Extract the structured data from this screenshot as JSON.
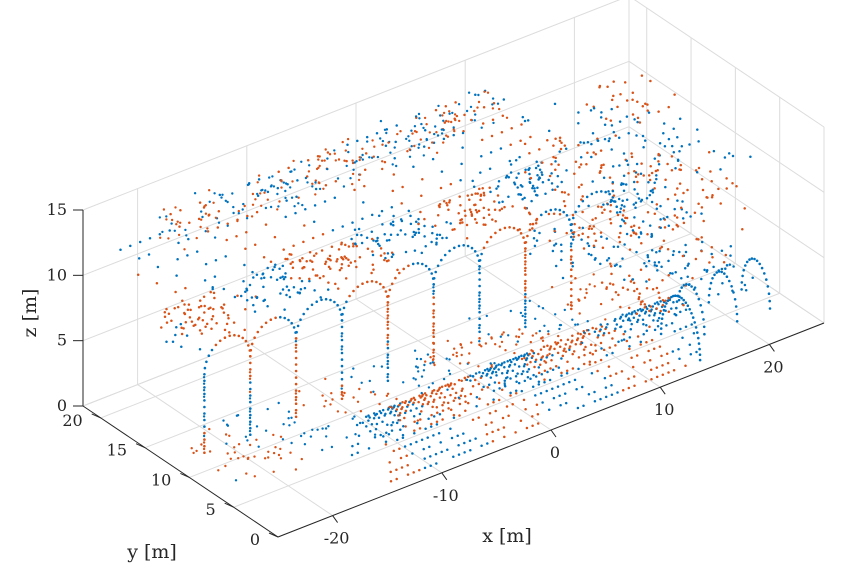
{
  "chart_data": {
    "type": "scatter",
    "projection": "3d",
    "title": "",
    "xlabel": "x [m]",
    "ylabel": "y [m]",
    "zlabel": "z [m]",
    "xlim": [
      -25,
      25
    ],
    "ylim": [
      0,
      22
    ],
    "zlim": [
      0,
      15
    ],
    "xticks": [
      "-20",
      "-10",
      "0",
      "10",
      "20"
    ],
    "yticks": [
      "0",
      "5",
      "10",
      "15",
      "20"
    ],
    "zticks": [
      "0",
      "5",
      "10",
      "15"
    ],
    "grid": true,
    "legend": "none",
    "series": [
      {
        "color": "#0072BD",
        "role": "point cloud (blue)"
      },
      {
        "color": "#D95319",
        "role": "point cloud (orange)"
      }
    ],
    "structures": [
      {
        "kind": "vault",
        "x": [
          -14,
          14
        ],
        "y": [
          1,
          5
        ],
        "z": [
          0,
          4.5
        ]
      },
      {
        "kind": "arcade-left",
        "x": [
          -24,
          12
        ],
        "y": [
          11,
          14
        ],
        "z": [
          0,
          10
        ]
      },
      {
        "kind": "roof-left",
        "x": [
          -24,
          12
        ],
        "y": [
          14,
          20
        ],
        "z": [
          9,
          14
        ]
      },
      {
        "kind": "right-structure",
        "x": [
          12,
          24
        ],
        "y": [
          6,
          20
        ],
        "z": [
          0,
          11
        ]
      }
    ]
  }
}
